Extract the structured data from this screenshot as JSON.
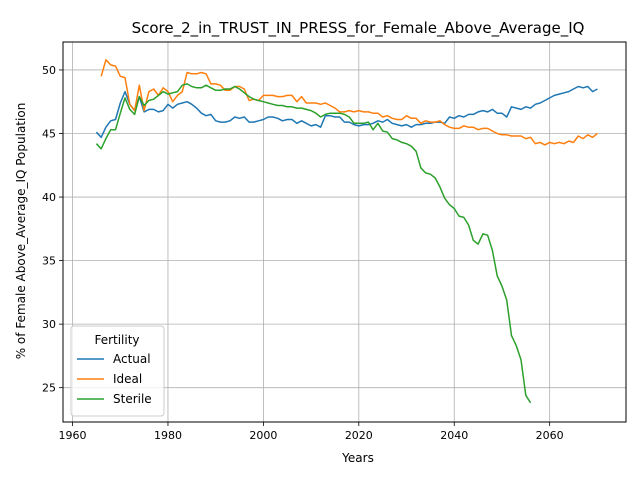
{
  "chart_data": {
    "type": "line",
    "title": "Score_2_in_TRUST_IN_PRESS_for_Female_Above_Average_IQ",
    "xlabel": "Years",
    "ylabel": "% of Female Above_Average_IQ Population",
    "xlim": [
      1958,
      2076
    ],
    "ylim": [
      22.3,
      52.2
    ],
    "xticks": [
      1960,
      1980,
      2000,
      2020,
      2040,
      2060
    ],
    "yticks": [
      25,
      30,
      35,
      40,
      45,
      50
    ],
    "grid": true,
    "legend": {
      "title": "Fertility",
      "placement": "lower left"
    },
    "series": [
      {
        "name": "Actual",
        "color": "#1f77b4",
        "x": [
          1965,
          1966,
          1967,
          1968,
          1969,
          1970,
          1971,
          1972,
          1973,
          1974,
          1975,
          1976,
          1977,
          1978,
          1979,
          1980,
          1981,
          1982,
          1983,
          1984,
          1985,
          1986,
          1987,
          1988,
          1989,
          1990,
          1991,
          1992,
          1993,
          1994,
          1995,
          1996,
          1997,
          1998,
          1999,
          2000,
          2001,
          2002,
          2003,
          2004,
          2005,
          2006,
          2007,
          2008,
          2009,
          2010,
          2011,
          2012,
          2013,
          2014,
          2015,
          2016,
          2017,
          2018,
          2019,
          2020,
          2021,
          2022,
          2023,
          2024,
          2025,
          2026,
          2027,
          2028,
          2029,
          2030,
          2031,
          2032,
          2033,
          2034,
          2035,
          2036,
          2037,
          2038,
          2039,
          2040,
          2041,
          2042,
          2043,
          2044,
          2045,
          2046,
          2047,
          2048,
          2049,
          2050,
          2051,
          2052,
          2053,
          2054,
          2055,
          2056,
          2057,
          2058,
          2059,
          2060,
          2061,
          2062,
          2063,
          2064,
          2065,
          2066,
          2067,
          2068,
          2069,
          2070
        ],
        "y": [
          45.1,
          44.7,
          45.5,
          46.0,
          46.1,
          47.4,
          48.3,
          47.3,
          46.8,
          47.9,
          46.7,
          46.9,
          46.9,
          46.7,
          46.8,
          47.3,
          47.0,
          47.3,
          47.4,
          47.5,
          47.3,
          47.0,
          46.6,
          46.4,
          46.5,
          46.0,
          45.9,
          45.9,
          46.0,
          46.3,
          46.2,
          46.3,
          45.9,
          45.9,
          46.0,
          46.1,
          46.3,
          46.3,
          46.2,
          46.0,
          46.1,
          46.1,
          45.8,
          46.0,
          45.8,
          45.6,
          45.7,
          45.5,
          46.4,
          46.4,
          46.3,
          46.3,
          45.9,
          45.9,
          45.7,
          45.6,
          45.7,
          45.7,
          45.8,
          46.0,
          45.9,
          46.1,
          45.8,
          45.7,
          45.6,
          45.7,
          45.5,
          45.7,
          45.7,
          45.8,
          45.8,
          45.9,
          45.9,
          45.8,
          46.3,
          46.2,
          46.4,
          46.3,
          46.5,
          46.5,
          46.7,
          46.8,
          46.7,
          46.9,
          46.6,
          46.6,
          46.3,
          47.1,
          47.0,
          46.9,
          47.1,
          47.0,
          47.3,
          47.4,
          47.6,
          47.8,
          48.0,
          48.1,
          48.2,
          48.3,
          48.5,
          48.7,
          48.6,
          48.7,
          48.3,
          48.5
        ]
      },
      {
        "name": "Ideal",
        "color": "#ff7f0e",
        "x": [
          1966,
          1967,
          1968,
          1969,
          1970,
          1971,
          1972,
          1973,
          1974,
          1975,
          1976,
          1977,
          1978,
          1979,
          1980,
          1981,
          1982,
          1983,
          1984,
          1985,
          1986,
          1987,
          1988,
          1989,
          1990,
          1991,
          1992,
          1993,
          1994,
          1995,
          1996,
          1997,
          1998,
          1999,
          2000,
          2001,
          2002,
          2003,
          2004,
          2005,
          2006,
          2007,
          2008,
          2009,
          2010,
          2011,
          2012,
          2013,
          2014,
          2015,
          2016,
          2017,
          2018,
          2019,
          2020,
          2021,
          2022,
          2023,
          2024,
          2025,
          2026,
          2027,
          2028,
          2029,
          2030,
          2031,
          2032,
          2033,
          2034,
          2035,
          2036,
          2037,
          2038,
          2039,
          2040,
          2041,
          2042,
          2043,
          2044,
          2045,
          2046,
          2047,
          2048,
          2049,
          2050,
          2051,
          2052,
          2053,
          2054,
          2055,
          2056,
          2057,
          2058,
          2059,
          2060,
          2061,
          2062,
          2063,
          2064,
          2065,
          2066,
          2067,
          2068,
          2069,
          2070
        ],
        "y": [
          49.5,
          50.8,
          50.4,
          50.3,
          49.5,
          49.4,
          47.3,
          46.8,
          48.8,
          46.8,
          48.3,
          48.5,
          48.0,
          48.6,
          48.3,
          47.5,
          48.0,
          48.3,
          49.8,
          49.7,
          49.7,
          49.8,
          49.7,
          48.9,
          48.9,
          48.8,
          48.4,
          48.4,
          48.7,
          48.7,
          48.5,
          47.6,
          47.7,
          47.6,
          48.0,
          48.0,
          48.0,
          47.9,
          47.9,
          48.0,
          48.0,
          47.5,
          47.9,
          47.4,
          47.4,
          47.4,
          47.3,
          47.4,
          47.2,
          47.0,
          46.7,
          46.7,
          46.8,
          46.7,
          46.8,
          46.7,
          46.7,
          46.6,
          46.6,
          46.3,
          46.4,
          46.2,
          46.1,
          46.1,
          46.4,
          46.2,
          46.2,
          45.8,
          46.0,
          45.9,
          45.9,
          46.0,
          45.7,
          45.5,
          45.4,
          45.4,
          45.6,
          45.5,
          45.5,
          45.3,
          45.4,
          45.4,
          45.2,
          45.0,
          44.9,
          44.9,
          44.8,
          44.8,
          44.8,
          44.6,
          44.7,
          44.2,
          44.3,
          44.1,
          44.3,
          44.2,
          44.3,
          44.2,
          44.4,
          44.3,
          44.8,
          44.6,
          44.9,
          44.7,
          45.0
        ]
      },
      {
        "name": "Sterile",
        "color": "#2ca02c",
        "x": [
          1965,
          1966,
          1967,
          1968,
          1969,
          1970,
          1971,
          1972,
          1973,
          1974,
          1975,
          1976,
          1977,
          1978,
          1979,
          1980,
          1981,
          1982,
          1983,
          1984,
          1985,
          1986,
          1987,
          1988,
          1989,
          1990,
          1991,
          1992,
          1993,
          1994,
          1995,
          1996,
          1997,
          1998,
          1999,
          2000,
          2001,
          2002,
          2003,
          2004,
          2005,
          2006,
          2007,
          2008,
          2009,
          2010,
          2011,
          2012,
          2013,
          2014,
          2015,
          2016,
          2017,
          2018,
          2019,
          2020,
          2021,
          2022,
          2023,
          2024,
          2025,
          2026,
          2027,
          2028,
          2029,
          2030,
          2031,
          2032,
          2033,
          2034,
          2035,
          2036,
          2037,
          2038,
          2039,
          2040,
          2041,
          2042,
          2043,
          2044,
          2045,
          2046,
          2047,
          2048,
          2049,
          2050,
          2051,
          2052,
          2053,
          2054,
          2055,
          2056
        ],
        "y": [
          44.2,
          43.8,
          44.6,
          45.3,
          45.3,
          46.6,
          47.8,
          46.9,
          46.5,
          47.9,
          47.2,
          47.6,
          47.7,
          48.0,
          48.3,
          48.1,
          48.2,
          48.3,
          48.8,
          48.9,
          48.7,
          48.6,
          48.6,
          48.8,
          48.6,
          48.4,
          48.4,
          48.5,
          48.5,
          48.7,
          48.5,
          48.2,
          47.9,
          47.7,
          47.6,
          47.5,
          47.4,
          47.3,
          47.2,
          47.2,
          47.1,
          47.1,
          47.0,
          47.0,
          46.9,
          46.8,
          46.6,
          46.3,
          46.5,
          46.6,
          46.6,
          46.6,
          46.5,
          46.3,
          45.8,
          45.8,
          45.8,
          45.9,
          45.3,
          45.8,
          45.2,
          45.1,
          44.6,
          44.5,
          44.3,
          44.2,
          44.0,
          43.6,
          42.3,
          41.9,
          41.8,
          41.5,
          40.8,
          39.9,
          39.4,
          39.1,
          38.5,
          38.4,
          37.8,
          36.6,
          36.3,
          37.1,
          37.0,
          35.8,
          33.8,
          33.0,
          31.9,
          29.1,
          28.3,
          27.2,
          24.4,
          23.8
        ]
      }
    ]
  }
}
